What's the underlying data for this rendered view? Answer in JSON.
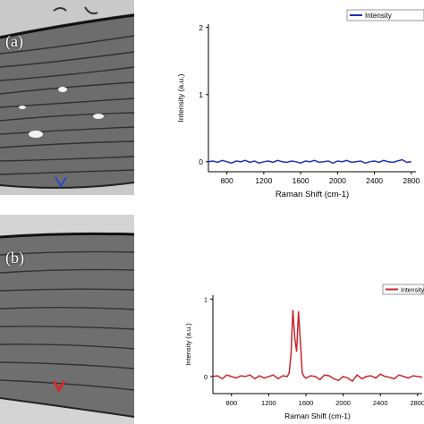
{
  "panels": {
    "a": {
      "label": "(a)"
    },
    "b": {
      "label": "(b)"
    }
  },
  "colors": {
    "series_a": "#1f2fb8",
    "series_b": "#c8262d",
    "marker_a": "#2f48c4",
    "marker_b": "#d12a2a"
  },
  "chart_data": [
    {
      "type": "line",
      "panel": "a",
      "xlabel": "Raman Shift (cm-1)",
      "ylabel": "Intensity (a.u.)",
      "xlim": [
        600,
        2850
      ],
      "ylim": [
        -0.15,
        2.05
      ],
      "xticks": [
        800,
        1200,
        1600,
        2000,
        2400,
        2800
      ],
      "yticks": [
        0,
        1,
        2
      ],
      "legend_position": "top-right",
      "series": [
        {
          "name": "Intensity",
          "x": [
            600,
            650,
            700,
            750,
            800,
            850,
            900,
            950,
            1000,
            1050,
            1100,
            1150,
            1200,
            1250,
            1300,
            1350,
            1400,
            1450,
            1500,
            1550,
            1600,
            1650,
            1700,
            1750,
            1800,
            1850,
            1900,
            1950,
            2000,
            2050,
            2100,
            2150,
            2200,
            2250,
            2300,
            2350,
            2400,
            2450,
            2500,
            2550,
            2600,
            2650,
            2700,
            2750,
            2800
          ],
          "y": [
            0.0,
            0.01,
            -0.01,
            0.02,
            0.0,
            -0.02,
            0.01,
            0.0,
            0.02,
            -0.01,
            0.01,
            -0.02,
            0.0,
            0.01,
            -0.01,
            0.02,
            0.0,
            -0.01,
            0.01,
            0.0,
            -0.02,
            0.01,
            0.0,
            0.02,
            -0.01,
            0.0,
            0.01,
            -0.02,
            0.01,
            0.0,
            0.02,
            -0.01,
            0.0,
            0.01,
            -0.02,
            0.0,
            0.01,
            -0.01,
            0.02,
            0.0,
            -0.01,
            0.01,
            0.03,
            -0.01,
            0.0
          ]
        }
      ]
    },
    {
      "type": "line",
      "panel": "b",
      "xlabel": "Raman Shift (cm-1)",
      "ylabel": "Intensity (a.u.)",
      "xlim": [
        600,
        2850
      ],
      "ylim": [
        -0.22,
        1.05
      ],
      "xticks": [
        800,
        1200,
        1600,
        2000,
        2400,
        2800
      ],
      "yticks": [
        0,
        1
      ],
      "legend_position": "top-right",
      "series": [
        {
          "name": "Intensity",
          "x": [
            600,
            650,
            700,
            750,
            800,
            850,
            900,
            950,
            1000,
            1050,
            1100,
            1150,
            1200,
            1250,
            1300,
            1350,
            1400,
            1420,
            1440,
            1460,
            1480,
            1500,
            1520,
            1540,
            1560,
            1580,
            1600,
            1650,
            1700,
            1750,
            1800,
            1850,
            1900,
            1950,
            2000,
            2050,
            2100,
            2150,
            2200,
            2250,
            2300,
            2350,
            2400,
            2450,
            2500,
            2550,
            2600,
            2650,
            2700,
            2750,
            2800,
            2850
          ],
          "y": [
            0.0,
            0.01,
            -0.03,
            0.02,
            0.0,
            -0.02,
            0.01,
            0.0,
            0.02,
            -0.03,
            0.01,
            -0.02,
            0.0,
            0.02,
            -0.03,
            0.01,
            0.0,
            0.05,
            0.3,
            0.86,
            0.5,
            0.32,
            0.84,
            0.45,
            0.05,
            0.0,
            -0.02,
            0.01,
            0.0,
            -0.04,
            0.02,
            0.01,
            -0.03,
            -0.05,
            0.0,
            -0.02,
            -0.06,
            0.02,
            -0.03,
            0.0,
            0.01,
            -0.02,
            0.03,
            0.0,
            -0.01,
            -0.03,
            0.02,
            0.0,
            -0.02,
            0.01,
            0.0,
            -0.01
          ]
        }
      ]
    }
  ]
}
